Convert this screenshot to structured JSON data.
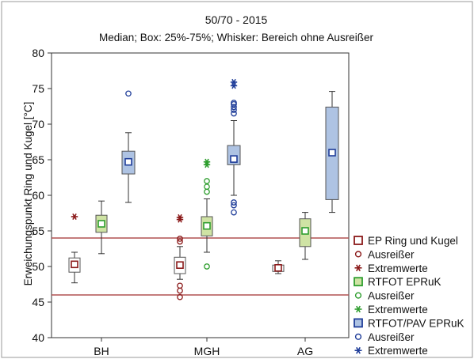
{
  "chart_data": {
    "type": "boxplot",
    "title": "50/70 - 2015",
    "subtitle": "Median; Box: 25%-75%; Whisker: Bereich ohne Ausreißer",
    "ylabel": "Erweichungspunkt Ring und Kugel [°C]",
    "xlabel": "",
    "ylim": [
      40,
      80
    ],
    "yticks": [
      40,
      45,
      50,
      55,
      60,
      65,
      70,
      75,
      80
    ],
    "categories": [
      "BH",
      "MGH",
      "AG"
    ],
    "grid": false,
    "legend_position": "right",
    "reference_lines": [
      46,
      54
    ],
    "series": [
      {
        "name": "EP Ring und Kugel",
        "outlier_label": "Ausreißer",
        "extreme_label": "Extremwerte",
        "color": "#8b1a1a",
        "fill": "#ffffff",
        "groups": [
          {
            "category": "BH",
            "median": 50.3,
            "q1": 49.2,
            "q3": 51.2,
            "whisker_low": 47.7,
            "whisker_high": 52.0,
            "outliers": [],
            "extremes": [
              57.0
            ]
          },
          {
            "category": "MGH",
            "median": 50.2,
            "q1": 49.0,
            "q3": 51.3,
            "whisker_low": 48.2,
            "whisker_high": 52.8,
            "outliers": [
              53.5,
              53.9,
              47.3,
              46.6,
              45.7
            ],
            "extremes": [
              56.6,
              56.9
            ]
          },
          {
            "category": "AG",
            "median": 49.8,
            "q1": 49.3,
            "q3": 50.2,
            "whisker_low": 49.0,
            "whisker_high": 50.8,
            "outliers": [],
            "extremes": []
          }
        ]
      },
      {
        "name": "RTFOT EPRuK",
        "outlier_label": "Ausreißer",
        "extreme_label": "Extremwerte",
        "color": "#2f9e2f",
        "fill": "#cfe3a4",
        "groups": [
          {
            "category": "BH",
            "median": 56.0,
            "q1": 54.8,
            "q3": 57.2,
            "whisker_low": 51.8,
            "whisker_high": 59.2,
            "outliers": [],
            "extremes": []
          },
          {
            "category": "MGH",
            "median": 55.7,
            "q1": 54.3,
            "q3": 57.0,
            "whisker_low": 52.0,
            "whisker_high": 59.5,
            "outliers": [
              60.5,
              61.2,
              62.0,
              50.0
            ],
            "extremes": [
              64.3,
              64.7
            ]
          },
          {
            "category": "AG",
            "median": 55.0,
            "q1": 52.8,
            "q3": 56.7,
            "whisker_low": 51.0,
            "whisker_high": 57.6,
            "outliers": [],
            "extremes": []
          }
        ]
      },
      {
        "name": "RTFOT/PAV EPRuK",
        "outlier_label": "Ausreißer",
        "extreme_label": "Extremwerte",
        "color": "#1f3d99",
        "fill": "#aec3e3",
        "groups": [
          {
            "category": "BH",
            "median": 64.7,
            "q1": 63.0,
            "q3": 66.2,
            "whisker_low": 59.0,
            "whisker_high": 68.8,
            "outliers": [
              74.3
            ],
            "extremes": []
          },
          {
            "category": "MGH",
            "median": 65.1,
            "q1": 64.3,
            "q3": 67.0,
            "whisker_low": 60.0,
            "whisker_high": 70.5,
            "outliers": [
              71.5,
              72.0,
              72.4,
              72.8,
              73.0,
              59.0,
              58.6,
              57.6
            ],
            "extremes": [
              75.4,
              75.9
            ]
          },
          {
            "category": "AG",
            "median": 66.0,
            "q1": 59.4,
            "q3": 72.4,
            "whisker_low": 57.6,
            "whisker_high": 74.6,
            "outliers": [],
            "extremes": []
          }
        ]
      }
    ]
  }
}
